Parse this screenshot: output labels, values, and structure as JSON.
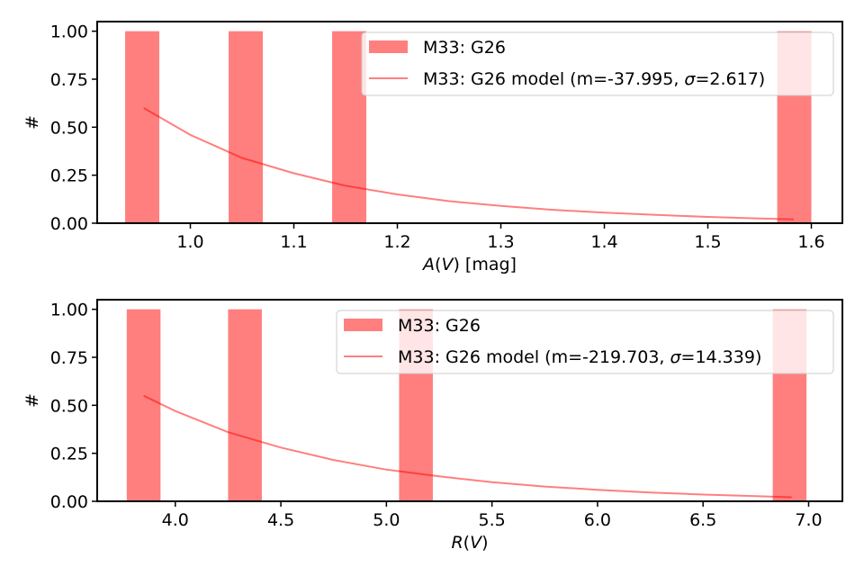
{
  "colors": {
    "bar": "#ff0000",
    "bar_opacity": 0.5,
    "line": "#ff0000",
    "line_opacity": 0.5,
    "axes": "#000000",
    "background": "#ffffff"
  },
  "chart_data": [
    {
      "type": "bar",
      "xlabel_plain": "",
      "xlabel_italic": "A",
      "xlabel_mid": "(",
      "xlabel_italic2": "V",
      "xlabel_tail": ") [mag]",
      "ylabel": "#",
      "xlim": [
        0.91,
        1.63
      ],
      "ylim": [
        0,
        1.05
      ],
      "xticks": [
        1.0,
        1.1,
        1.2,
        1.3,
        1.4,
        1.5,
        1.6
      ],
      "xtick_labels": [
        "1.0",
        "1.1",
        "1.2",
        "1.3",
        "1.4",
        "1.5",
        "1.6"
      ],
      "yticks": [
        0,
        0.25,
        0.5,
        0.75,
        1.0
      ],
      "ytick_labels": [
        "0.00",
        "0.25",
        "0.50",
        "0.75",
        "1.00"
      ],
      "bars": [
        {
          "x0": 0.937,
          "x1": 0.97,
          "value": 1.0
        },
        {
          "x0": 1.037,
          "x1": 1.07,
          "value": 1.0
        },
        {
          "x0": 1.137,
          "x1": 1.17,
          "value": 1.0
        },
        {
          "x0": 1.567,
          "x1": 1.6,
          "value": 1.0
        }
      ],
      "model": {
        "x": [
          0.955,
          1.0,
          1.05,
          1.1,
          1.15,
          1.2,
          1.25,
          1.3,
          1.35,
          1.4,
          1.45,
          1.5,
          1.55,
          1.583
        ],
        "y": [
          0.6,
          0.46,
          0.34,
          0.26,
          0.195,
          0.15,
          0.115,
          0.09,
          0.07,
          0.055,
          0.043,
          0.033,
          0.025,
          0.02
        ]
      },
      "legend": {
        "bar_label": "M33: G26",
        "model_prefix": "M33: G26 model (m=-37.995, ",
        "model_sigma_symbol": "σ",
        "model_suffix": "=2.617)"
      }
    },
    {
      "type": "bar",
      "xlabel_italic": "R",
      "xlabel_mid": "(",
      "xlabel_italic2": "V",
      "xlabel_tail": ")",
      "ylabel": "#",
      "xlim": [
        3.63,
        7.16
      ],
      "ylim": [
        0,
        1.05
      ],
      "xticks": [
        4.0,
        4.5,
        5.0,
        5.5,
        6.0,
        6.5,
        7.0
      ],
      "xtick_labels": [
        "4.0",
        "4.5",
        "5.0",
        "5.5",
        "6.0",
        "6.5",
        "7.0"
      ],
      "yticks": [
        0,
        0.25,
        0.5,
        0.75,
        1.0
      ],
      "ytick_labels": [
        "0.00",
        "0.25",
        "0.50",
        "0.75",
        "1.00"
      ],
      "bars": [
        {
          "x0": 3.77,
          "x1": 3.93,
          "value": 1.0
        },
        {
          "x0": 4.25,
          "x1": 4.41,
          "value": 1.0
        },
        {
          "x0": 5.06,
          "x1": 5.22,
          "value": 1.0
        },
        {
          "x0": 6.83,
          "x1": 6.99,
          "value": 1.0
        }
      ],
      "model": {
        "x": [
          3.85,
          4.0,
          4.25,
          4.5,
          4.75,
          5.0,
          5.25,
          5.5,
          5.75,
          6.0,
          6.25,
          6.5,
          6.75,
          6.92
        ],
        "y": [
          0.55,
          0.47,
          0.36,
          0.28,
          0.215,
          0.165,
          0.13,
          0.1,
          0.077,
          0.06,
          0.046,
          0.035,
          0.027,
          0.021
        ]
      },
      "legend": {
        "bar_label": "M33: G26",
        "model_prefix": "M33: G26 model (m=-219.703, ",
        "model_sigma_symbol": "σ",
        "model_suffix": "=14.339)"
      }
    }
  ]
}
